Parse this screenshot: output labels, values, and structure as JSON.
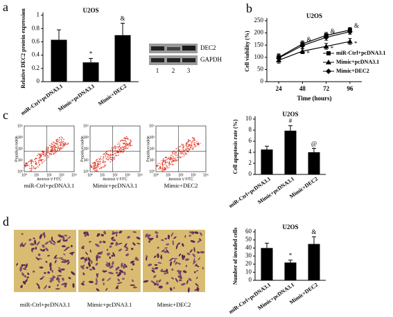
{
  "panel_labels": [
    "a",
    "b",
    "c",
    "d"
  ],
  "chart_data": [
    {
      "type": "bar",
      "title": "U2OS",
      "y_label": "Relative DEC2 protein expression",
      "categories": [
        "miR-Ctrl+pcDNA3.1",
        "Mimic+pcDNA3.1",
        "Mimic+DEC2"
      ],
      "values": [
        0.63,
        0.29,
        0.7
      ],
      "errors": [
        0.15,
        0.06,
        0.18
      ],
      "annotations": [
        null,
        "*",
        "&"
      ],
      "color": "#000000",
      "ylim": [
        0,
        1
      ],
      "yticks": [
        0,
        0.2,
        0.4,
        0.6,
        0.8,
        1
      ]
    },
    {
      "type": "line",
      "title": "U2OS",
      "y_label": "Cell viability (%)",
      "x_label": "Time (hours)",
      "x": [
        24,
        48,
        72,
        96
      ],
      "xlim": [
        12,
        108
      ],
      "xticks": [
        24,
        48,
        72,
        96
      ],
      "ylim": [
        0,
        250
      ],
      "yticks": [
        0,
        50,
        100,
        150,
        200,
        250
      ],
      "series": [
        {
          "name": "miR-Ctrl+pcDNA3.1",
          "color": "#000000",
          "marker": "square",
          "values": [
            100,
            155,
            190,
            212
          ],
          "errors": [
            14,
            12,
            12,
            10
          ],
          "annotations": [
            null,
            null,
            null,
            null
          ]
        },
        {
          "name": "Mimic+pcDNA3.1",
          "color": "#000000",
          "marker": "triangle",
          "values": [
            88,
            125,
            145,
            165
          ],
          "errors": [
            12,
            10,
            12,
            12
          ],
          "annotations": [
            null,
            "*",
            "*",
            "*"
          ]
        },
        {
          "name": "Mimic+DEC2",
          "color": "#000000",
          "marker": "diamond",
          "values": [
            97,
            148,
            182,
            205
          ],
          "errors": [
            14,
            12,
            12,
            10
          ],
          "annotations": [
            null,
            "&",
            "&",
            "&"
          ]
        }
      ],
      "legend": "right"
    },
    {
      "type": "bar",
      "title": "U2OS",
      "y_label": "Cell apoptosis rate (%)",
      "categories": [
        "miR-Ctrl+pcDNA3.1",
        "Mimic+pcDNA3.1",
        "Mimic+DEC2"
      ],
      "values": [
        4.5,
        7.9,
        4.0
      ],
      "errors": [
        0.6,
        0.9,
        0.7
      ],
      "annotations": [
        null,
        "#",
        "@"
      ],
      "color": "#000000",
      "ylim": [
        0,
        10
      ],
      "yticks": [
        0,
        2,
        4,
        6,
        8,
        10
      ]
    },
    {
      "type": "bar",
      "title": "U2OS",
      "y_label": "Number of invaded cells",
      "categories": [
        "miR-Ctrl+pcDNA3.1",
        "Mimic+pcDNA3.1",
        "Mimic+DEC2"
      ],
      "values": [
        40,
        22,
        45
      ],
      "errors": [
        6,
        3,
        9
      ],
      "annotations": [
        null,
        "*",
        "&"
      ],
      "color": "#000000",
      "ylim": [
        0,
        60
      ],
      "yticks": [
        0,
        10,
        20,
        30,
        40,
        50,
        60
      ]
    }
  ],
  "blot": {
    "bands": [
      "DEC2",
      "GAPDH"
    ],
    "lanes": [
      "1",
      "2",
      "3"
    ]
  },
  "flow": {
    "y_label": "Propidium Iodide",
    "x_label": "Annexin V FITC",
    "ticks": [
      "10⁰",
      "10¹",
      "10²",
      "10³",
      "10⁴"
    ],
    "captions": [
      "miR-Ctrl+pcDNA3.1",
      "Mimic+pcDNA3.1",
      "Mimic+DEC2"
    ]
  },
  "invasion": {
    "captions": [
      "miR-Ctrl+pcDNA3.1",
      "Mimic+pcDNA3.1",
      "Mimic+DEC2"
    ]
  }
}
